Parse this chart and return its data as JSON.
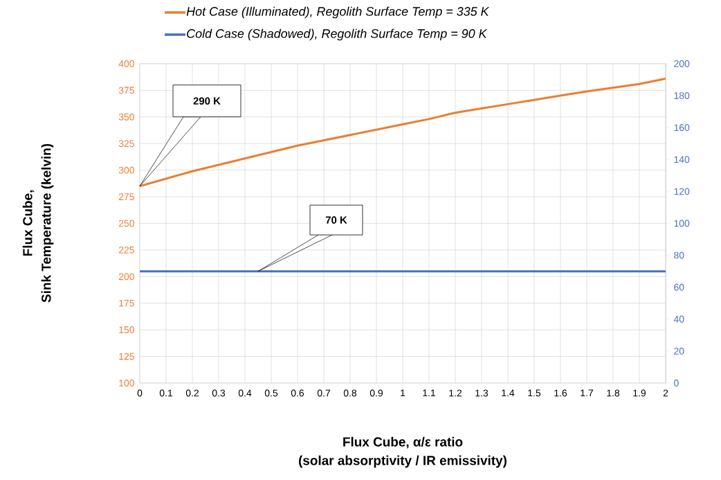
{
  "chart_data": {
    "type": "line",
    "xlabel": "Flux Cube, α/ε ratio (solar absorptivity / IR emissivity)",
    "ylabel": "Flux Cube, Sink Temperature (kelvin)",
    "x": [
      0,
      0.1,
      0.2,
      0.3,
      0.4,
      0.5,
      0.6,
      0.7,
      0.8,
      0.9,
      1,
      1.1,
      1.2,
      1.3,
      1.4,
      1.5,
      1.6,
      1.7,
      1.8,
      1.9,
      2
    ],
    "series": [
      {
        "name": "Hot Case (Illuminated), Regolith Surface Temp = 335 K",
        "color": "#ed7d31",
        "values": [
          285,
          292,
          299,
          305,
          311,
          317,
          323,
          328,
          333,
          338,
          343,
          348,
          354,
          358,
          362,
          366,
          370,
          374,
          377.5,
          381,
          386
        ]
      },
      {
        "name": "Cold Case (Shadowed), Regolith Surface Temp = 90 K",
        "color": "#4472c4",
        "axis": "y2",
        "x": [
          0,
          2
        ],
        "values": [
          70,
          70
        ]
      }
    ],
    "annotations": [
      "290 K",
      {
        "text": "70 K",
        "x": 0.45,
        "y": 205
      }
    ],
    "xlim": [
      0,
      2
    ],
    "xticks": [
      0,
      0.1,
      0.2,
      0.3,
      0.4,
      0.5,
      0.6,
      0.7,
      0.8,
      0.9,
      1,
      1.1,
      1.2,
      1.3,
      1.4,
      1.5,
      1.6,
      1.7,
      1.8,
      1.9,
      2
    ],
    "ylim": [
      100,
      400
    ],
    "yticks": [
      100,
      125,
      150,
      175,
      200,
      225,
      250,
      275,
      300,
      325,
      350,
      375,
      400
    ],
    "y2lim": [
      0,
      200
    ],
    "y2ticks": [
      0,
      20,
      40,
      60,
      80,
      100,
      120,
      140,
      160,
      180,
      200
    ],
    "grid": true,
    "legend": "top"
  }
}
